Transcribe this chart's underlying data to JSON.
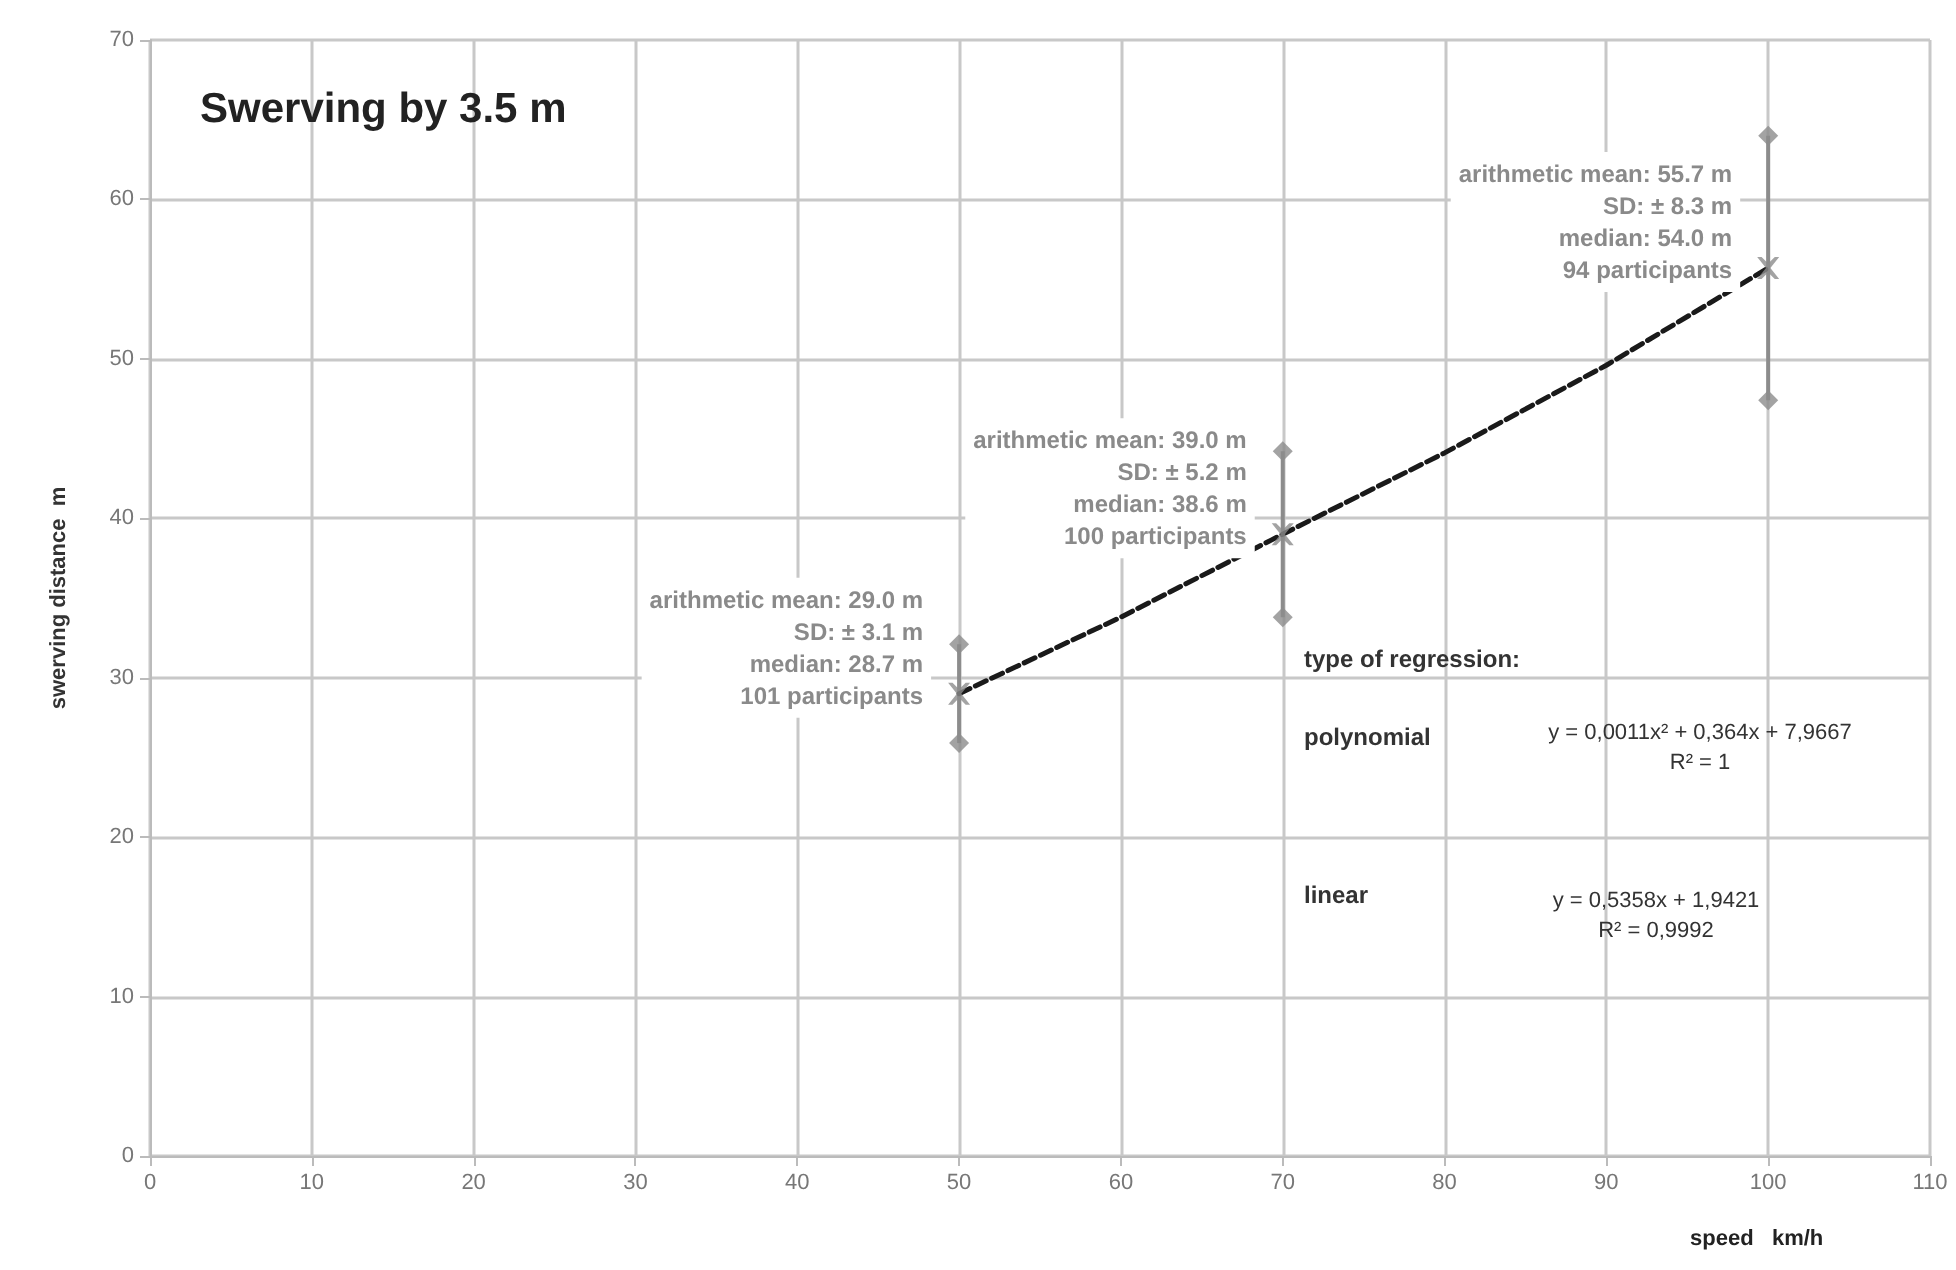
{
  "chart_data": {
    "type": "scatter",
    "title": "Swerving by 3.5 m",
    "xlabel": "speed   km/h",
    "ylabel": "swerving distance  m",
    "xlim": [
      0,
      110
    ],
    "xticks": [
      0,
      10,
      20,
      30,
      40,
      50,
      60,
      70,
      80,
      90,
      100,
      110
    ],
    "ylim": [
      0,
      70
    ],
    "yticks": [
      0,
      10,
      20,
      30,
      40,
      50,
      60,
      70
    ],
    "grid": true,
    "series": [
      {
        "type": "line",
        "color": "#1a1a1a",
        "x": [
          50,
          60,
          70,
          80,
          90,
          100
        ],
        "values": [
          29,
          33.8,
          39,
          44.1,
          49.6,
          55.7
        ],
        "marker": "none",
        "line_style": "dashed"
      },
      {
        "color": "#8c8c8c",
        "x": [
          50,
          70,
          100
        ],
        "values": [
          29,
          39,
          55.7
        ],
        "errors": [
          3.1,
          5.2,
          8.3
        ],
        "marker": "cross"
      },
      {
        "color": "#8c8c8c",
        "x": [
          50,
          50,
          70,
          70,
          100,
          100
        ],
        "values": [
          32.1,
          25.9,
          44.2,
          33.8,
          64,
          47.4
        ],
        "marker": "diamond"
      }
    ],
    "annotations": [
      {
        "text": "arithmetic mean: 29.0 m\nSD: ± 3.1 m\nmedian: 28.7 m\n101 participants",
        "x": 50,
        "y": 29
      },
      {
        "text": "arithmetic mean: 39.0 m\nSD: ± 5.2 m\nmedian: 38.6 m\n100 participants",
        "x": 70,
        "y": 39
      },
      {
        "text": "arithmetic mean: 55.7 m\nSD: ± 8.3 m\nmedian: 54.0 m\n94 participants",
        "x": 100,
        "y": 55.7
      },
      "type of regression:",
      "polynomial",
      "y = 0,0011x² + 0,364x + 7,9667\nR² = 1",
      "linear",
      "y = 0,5358x + 1,9421\nR² = 0,9992"
    ]
  }
}
